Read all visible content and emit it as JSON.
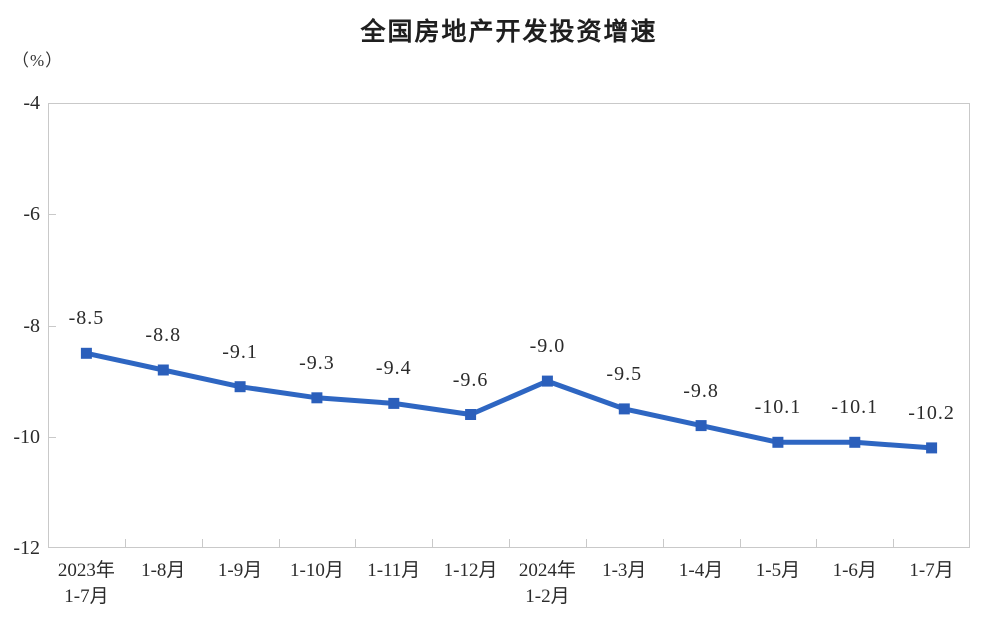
{
  "title": "全国房地产开发投资增速",
  "y_axis_unit": "（%）",
  "colors": {
    "line": "#2e66c2",
    "marker": "#2b5fbb",
    "frame": "#c9c9c9",
    "text": "#2b2b2b"
  },
  "chart_data": {
    "type": "line",
    "title": "全国房地产开发投资增速",
    "ylabel": "（%）",
    "categories": [
      [
        "2023年",
        "1-7月"
      ],
      [
        "1-8月"
      ],
      [
        "1-9月"
      ],
      [
        "1-10月"
      ],
      [
        "1-11月"
      ],
      [
        "1-12月"
      ],
      [
        "2024年",
        "1-2月"
      ],
      [
        "1-3月"
      ],
      [
        "1-4月"
      ],
      [
        "1-5月"
      ],
      [
        "1-6月"
      ],
      [
        "1-7月"
      ]
    ],
    "values": [
      -8.5,
      -8.8,
      -9.1,
      -9.3,
      -9.4,
      -9.6,
      -9.0,
      -9.5,
      -9.8,
      -10.1,
      -10.1,
      -10.2
    ],
    "data_labels": [
      "-8.5",
      "-8.8",
      "-9.1",
      "-9.3",
      "-9.4",
      "-9.6",
      "-9.0",
      "-9.5",
      "-9.8",
      "-10.1",
      "-10.1",
      "-10.2"
    ],
    "y_ticks": [
      -4,
      -6,
      -8,
      -10,
      -12
    ],
    "y_tick_labels": [
      "-4",
      "-6",
      "-8",
      "-10",
      "-12"
    ],
    "ylim": [
      -12,
      -4
    ],
    "xlabel": "",
    "grid": false,
    "legend": false,
    "marker": "square",
    "line_color": "#2e66c2"
  }
}
